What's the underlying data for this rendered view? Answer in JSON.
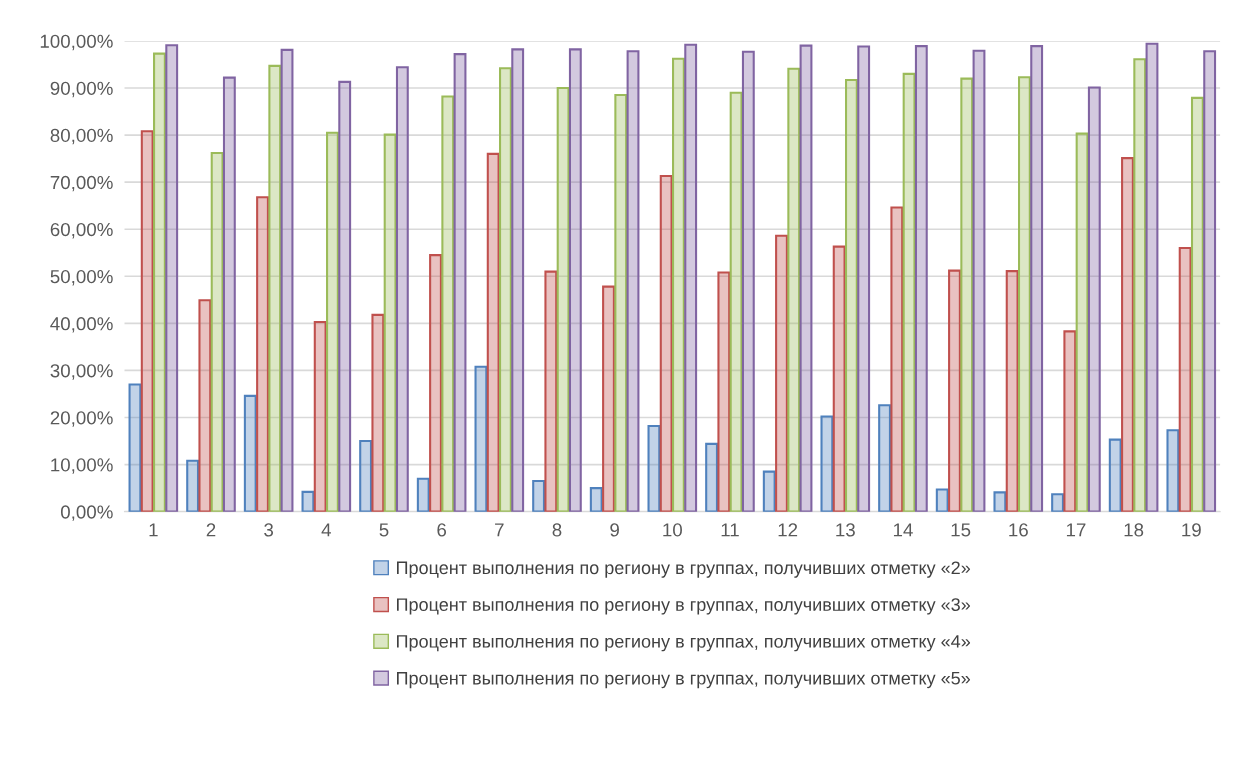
{
  "chart_data": {
    "type": "bar",
    "categories": [
      "1",
      "2",
      "3",
      "4",
      "5",
      "6",
      "7",
      "8",
      "9",
      "10",
      "11",
      "12",
      "13",
      "14",
      "15",
      "16",
      "17",
      "18",
      "19"
    ],
    "series": [
      {
        "name": "Процент выполнения по региону в группах, получивших отметку «2»",
        "color": "#4f81bd",
        "values": [
          27,
          10.8,
          24.6,
          4.2,
          15,
          7,
          30.8,
          6.5,
          5,
          18.2,
          14.4,
          8.5,
          20.2,
          22.6,
          4.7,
          4.1,
          3.7,
          15.3,
          17.3
        ]
      },
      {
        "name": "Процент выполнения по региону в группах, получивших отметку «3»",
        "color": "#c0504d",
        "values": [
          80.8,
          44.9,
          66.8,
          40.3,
          41.8,
          54.5,
          76,
          51,
          47.8,
          71.3,
          50.8,
          58.6,
          56.3,
          64.6,
          51.2,
          51.1,
          38.3,
          75.1,
          56
        ]
      },
      {
        "name": "Процент выполнения по региону в группах, получивших отметку «4»",
        "color": "#9bbb59",
        "values": [
          97.3,
          76.2,
          94.7,
          80.5,
          80.1,
          88.2,
          94.2,
          90,
          88.5,
          96.2,
          89,
          94.1,
          91.7,
          93,
          92,
          92.3,
          80.3,
          96.1,
          87.9
        ]
      },
      {
        "name": "Процент выполнения по региону в группах, получивших отметку «5»",
        "color": "#8064a2",
        "values": [
          99.1,
          92.2,
          98.1,
          91.3,
          94.4,
          97.2,
          98.2,
          98.2,
          97.8,
          99.2,
          97.7,
          99,
          98.8,
          98.9,
          97.9,
          98.9,
          90.1,
          99.4,
          97.8
        ]
      }
    ],
    "ylim": [
      0,
      100
    ],
    "yticks": [
      {
        "value": 0,
        "label": "0,00%"
      },
      {
        "value": 10,
        "label": "10,00%"
      },
      {
        "value": 20,
        "label": "20,00%"
      },
      {
        "value": 30,
        "label": "30,00%"
      },
      {
        "value": 40,
        "label": "40,00%"
      },
      {
        "value": 50,
        "label": "50,00%"
      },
      {
        "value": 60,
        "label": "60,00%"
      },
      {
        "value": 70,
        "label": "70,00%"
      },
      {
        "value": 80,
        "label": "80,00%"
      },
      {
        "value": 90,
        "label": "90,00%"
      },
      {
        "value": 100,
        "label": "100,00%"
      }
    ],
    "grid": "y",
    "legend": "bottom"
  }
}
